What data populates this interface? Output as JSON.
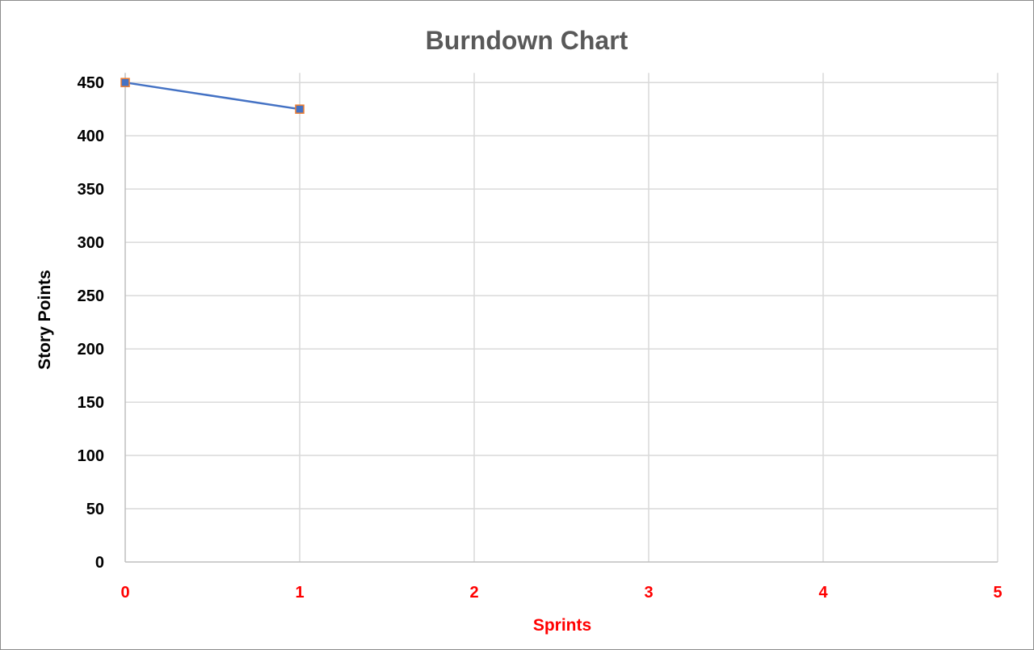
{
  "chart_data": {
    "type": "line",
    "title": "Burndown Chart",
    "xlabel": "Sprints",
    "ylabel": "Story Points",
    "x_ticks": [
      "0",
      "1",
      "2",
      "3",
      "4",
      "5"
    ],
    "y_ticks": [
      "0",
      "50",
      "100",
      "150",
      "200",
      "250",
      "300",
      "350",
      "400",
      "450"
    ],
    "xlim": [
      0,
      5
    ],
    "ylim": [
      0,
      460
    ],
    "grid": true,
    "legend": "none",
    "series": [
      {
        "x": [
          0,
          1
        ],
        "y": [
          450,
          425
        ],
        "line_color": "#4472C4",
        "marker": "square",
        "marker_fill": "#4472C4",
        "marker_edge": "#ED7D31"
      }
    ],
    "colors": {
      "title": "#595959",
      "x_axis_text": "#FF0000",
      "y_axis_text": "#000000",
      "gridline": "#D9D9D9",
      "axis_line": "#BFBFBF"
    }
  }
}
